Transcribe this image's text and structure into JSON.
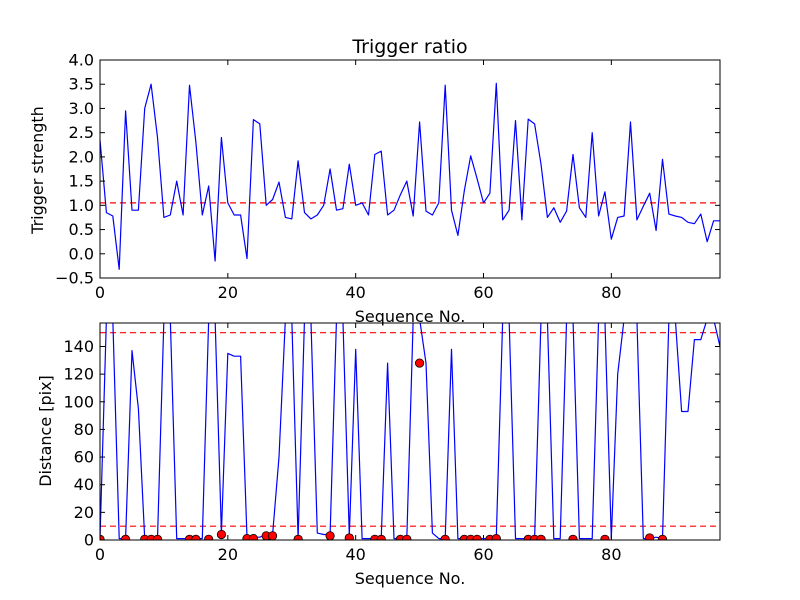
{
  "chart_data": [
    {
      "type": "line",
      "title": "Trigger ratio",
      "xlabel": "Sequence No.",
      "ylabel": "Trigger strength",
      "xlim": [
        0,
        97
      ],
      "ylim": [
        -0.5,
        4.0
      ],
      "xticks": [
        0,
        20,
        40,
        60,
        80
      ],
      "yticks": [
        -0.5,
        0.0,
        0.5,
        1.0,
        1.5,
        2.0,
        2.5,
        3.0,
        3.5,
        4.0
      ],
      "x_tick_labels": [
        "0",
        "20",
        "40",
        "60",
        "80"
      ],
      "y_tick_labels": [
        "−0.5",
        "0.0",
        "0.5",
        "1.0",
        "1.5",
        "2.0",
        "2.5",
        "3.0",
        "3.5",
        "4.0"
      ],
      "grid": false,
      "hlines": [
        {
          "y": 1.05,
          "color": "#ff0000",
          "style": "dashed"
        }
      ],
      "series": [
        {
          "color": "#0000ff",
          "x": [
            0,
            1,
            2,
            3,
            4,
            5,
            6,
            7,
            8,
            9,
            10,
            11,
            12,
            13,
            14,
            15,
            16,
            17,
            18,
            19,
            20,
            21,
            22,
            23,
            24,
            25,
            26,
            27,
            28,
            29,
            30,
            31,
            32,
            33,
            34,
            35,
            36,
            37,
            38,
            39,
            40,
            41,
            42,
            43,
            44,
            45,
            46,
            47,
            48,
            49,
            50,
            51,
            52,
            53,
            54,
            55,
            56,
            57,
            58,
            59,
            60,
            61,
            62,
            63,
            64,
            65,
            66,
            67,
            68,
            69,
            70,
            71,
            72,
            73,
            74,
            75,
            76,
            77,
            78,
            79,
            80,
            81,
            82,
            83,
            84,
            85,
            86,
            87,
            88,
            89,
            90,
            91,
            92,
            93,
            94,
            95,
            96,
            97
          ],
          "y": [
            2.35,
            0.85,
            0.78,
            -0.32,
            2.95,
            0.9,
            0.9,
            3.0,
            3.5,
            2.4,
            0.75,
            0.8,
            1.5,
            0.8,
            3.48,
            2.3,
            0.8,
            1.4,
            -0.15,
            2.4,
            1.05,
            0.8,
            0.8,
            -0.1,
            2.77,
            2.68,
            1.0,
            1.12,
            1.48,
            0.75,
            0.72,
            1.92,
            0.85,
            0.72,
            0.8,
            1.0,
            1.75,
            0.9,
            0.93,
            1.85,
            1.0,
            1.05,
            0.8,
            2.05,
            2.12,
            0.8,
            0.9,
            1.22,
            1.5,
            0.78,
            2.72,
            0.88,
            0.8,
            1.05,
            3.48,
            0.9,
            0.38,
            1.3,
            2.02,
            1.55,
            1.05,
            1.25,
            3.52,
            0.7,
            0.9,
            2.75,
            0.7,
            2.78,
            2.68,
            1.85,
            0.75,
            0.95,
            0.65,
            0.88,
            2.05,
            0.95,
            0.75,
            2.5,
            0.78,
            1.28,
            0.3,
            0.75,
            0.78,
            2.72,
            0.7,
            0.98,
            1.25,
            0.48,
            1.95,
            0.82,
            0.78,
            0.75,
            0.65,
            0.62,
            0.82,
            0.25,
            0.68,
            0.68
          ]
        }
      ]
    },
    {
      "type": "line",
      "title": "",
      "xlabel": "Sequence No.",
      "ylabel": "Distance [pix]",
      "xlim": [
        0,
        97
      ],
      "ylim": [
        0,
        157
      ],
      "xticks": [
        0,
        20,
        40,
        60,
        80
      ],
      "yticks": [
        0,
        20,
        40,
        60,
        80,
        100,
        120,
        140
      ],
      "x_tick_labels": [
        "0",
        "20",
        "40",
        "60",
        "80"
      ],
      "y_tick_labels": [
        "0",
        "20",
        "40",
        "60",
        "80",
        "100",
        "120",
        "140"
      ],
      "grid": false,
      "hlines": [
        {
          "y": 150,
          "color": "#ff0000",
          "style": "dashed"
        },
        {
          "y": 10,
          "color": "#ff0000",
          "style": "dashed"
        }
      ],
      "series": [
        {
          "color": "#0000ff",
          "x": [
            0,
            1,
            2,
            3,
            4,
            5,
            6,
            7,
            8,
            9,
            10,
            11,
            12,
            13,
            14,
            15,
            16,
            17,
            18,
            19,
            20,
            21,
            22,
            23,
            24,
            25,
            26,
            27,
            28,
            29,
            30,
            31,
            32,
            33,
            34,
            35,
            36,
            37,
            38,
            39,
            40,
            41,
            42,
            43,
            44,
            45,
            46,
            47,
            48,
            49,
            50,
            51,
            52,
            53,
            54,
            55,
            56,
            57,
            58,
            59,
            60,
            61,
            62,
            63,
            64,
            65,
            66,
            67,
            68,
            69,
            70,
            71,
            72,
            73,
            74,
            75,
            76,
            77,
            78,
            79,
            80,
            81,
            82,
            83,
            84,
            85,
            86,
            87,
            88,
            89,
            90,
            91,
            92,
            93,
            94,
            95,
            96,
            97
          ],
          "y": [
            1,
            160,
            160,
            1,
            1,
            137,
            95,
            1,
            1,
            1,
            160,
            160,
            1,
            1,
            1,
            1,
            1,
            160,
            160,
            5,
            135,
            133,
            133,
            2,
            2,
            2,
            4,
            4,
            60,
            160,
            160,
            1,
            160,
            160,
            5,
            4,
            4,
            160,
            160,
            3,
            138,
            1,
            1,
            1,
            1,
            128,
            1,
            1,
            1,
            160,
            160,
            128,
            5,
            1,
            1,
            138,
            1,
            1,
            1,
            1,
            1,
            1,
            2,
            160,
            160,
            1,
            1,
            1,
            1,
            160,
            160,
            1,
            1,
            160,
            160,
            1,
            1,
            1,
            160,
            160,
            1,
            120,
            160,
            160,
            160,
            1,
            1,
            2,
            1,
            160,
            160,
            93,
            93,
            145,
            145,
            160,
            160,
            140
          ]
        },
        {
          "type": "scatter",
          "color": "#ff0000",
          "marker": "circle",
          "x": [
            0,
            4,
            7,
            8,
            9,
            14,
            15,
            17,
            19,
            23,
            24,
            26,
            27,
            31,
            36,
            39,
            43,
            44,
            47,
            48,
            50,
            54,
            57,
            58,
            59,
            61,
            62,
            67,
            68,
            69,
            74,
            79,
            86,
            88
          ],
          "y": [
            0.5,
            0.5,
            0.5,
            0.5,
            0.5,
            0.5,
            0.5,
            0.5,
            4,
            1,
            1,
            3,
            3,
            0.5,
            3,
            1.5,
            0.5,
            0.5,
            0.5,
            0.5,
            128,
            0.5,
            0.5,
            0.5,
            0.5,
            0.5,
            1,
            0.5,
            0.5,
            0.5,
            0.5,
            0.5,
            1.5,
            0.5
          ]
        }
      ]
    }
  ]
}
